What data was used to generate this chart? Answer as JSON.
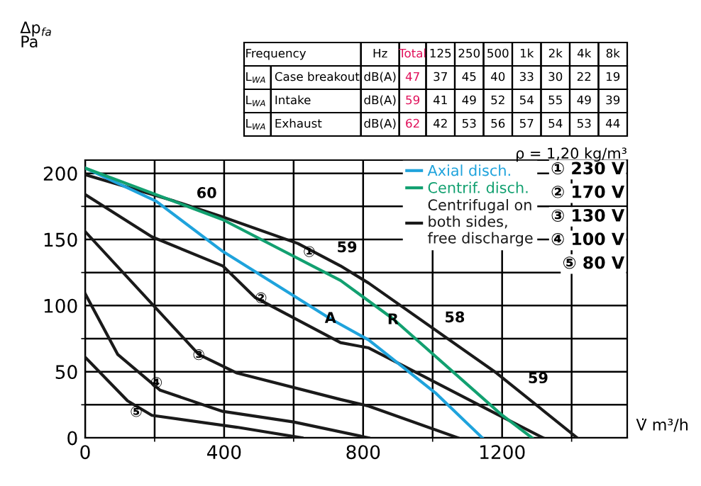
{
  "chart_data": [
    {
      "type": "line",
      "ylabel": "Δp$_{fa}$\nPa",
      "xlabel": "V̇ m³/h",
      "xlim": [
        0,
        1560
      ],
      "ylim": [
        0,
        210
      ],
      "xticks": [
        0,
        400,
        800,
        1200
      ],
      "yticks": [
        0,
        50,
        100,
        150,
        200
      ],
      "grid": true,
      "legend": "top right",
      "marker": "none",
      "line_style": "solid",
      "series": [
        {
          "name": "Centrifugal on\nboth sides,\nfree discharge",
          "color": "#1a1a1a",
          "x": [
            0,
            257,
            396,
            612,
            735,
            816,
            1184,
            1416
          ],
          "values": [
            199,
            179,
            167,
            147,
            130,
            117,
            49,
            0
          ]
        },
        {
          "color": "#1a1a1a",
          "x": [
            0,
            192,
            396,
            490,
            735,
            816,
            1184,
            1318
          ],
          "values": [
            184,
            152,
            130,
            106,
            72,
            68,
            18,
            0
          ]
        },
        {
          "color": "#1a1a1a",
          "x": [
            0,
            204,
            327,
            437,
            735,
            816,
            1073
          ],
          "values": [
            156,
            98,
            63,
            49,
            29,
            24,
            0
          ]
        },
        {
          "color": "#1a1a1a",
          "x": [
            0,
            94,
            216,
            396,
            600,
            816
          ],
          "values": [
            109,
            63,
            36,
            20,
            12,
            0
          ]
        },
        {
          "color": "#1a1a1a",
          "x": [
            0,
            122,
            192,
            437,
            624
          ],
          "values": [
            61,
            28,
            17,
            8,
            0
          ]
        },
        {
          "name": "Axial disch.",
          "color": "#1fa3dc",
          "x": [
            0,
            204,
            396,
            706,
            816,
            1008,
            1143
          ],
          "values": [
            204,
            179,
            141,
            90,
            74,
            34,
            0
          ]
        },
        {
          "name": "Centrif. disch.",
          "color": "#12a070",
          "x": [
            0,
            396,
            735,
            886,
            1196,
            1286
          ],
          "values": [
            204,
            165,
            119,
            90,
            18,
            0
          ]
        }
      ],
      "annotations": [
        {
          "text": "60",
          "x": 286,
          "y": 177
        },
        {
          "text": "59",
          "x": 690,
          "y": 136
        },
        {
          "text": "58",
          "x": 1000,
          "y": 83
        },
        {
          "text": "59",
          "x": 1240,
          "y": 37
        },
        {
          "text": "①",
          "x": 645,
          "y": 140
        },
        {
          "text": "②",
          "x": 506,
          "y": 105
        },
        {
          "text": "③",
          "x": 327,
          "y": 62
        },
        {
          "text": "④",
          "x": 205,
          "y": 41
        },
        {
          "text": "⑤",
          "x": 147,
          "y": 19
        },
        {
          "text": "A",
          "x": 706,
          "y": 90
        },
        {
          "text": "R",
          "x": 886,
          "y": 89
        },
        "① 230 V",
        "② 170 V",
        "③ 130 V",
        "④ 100 V",
        "⑤ 80 V",
        "ρ = 1,20 kg/m³"
      ]
    },
    {
      "type": "other",
      "cell_labels": [
        [
          "Frequency",
          null,
          "Hz",
          "Total",
          "125",
          "250",
          "500",
          "1k",
          "2k",
          "4k",
          "8k"
        ],
        [
          "L$_{WA}$",
          "Case breakout",
          "dB(A)",
          "47",
          "37",
          "45",
          "40",
          "33",
          "30",
          "22",
          "19"
        ],
        [
          "L$_{WA}$",
          "Intake",
          "dB(A)",
          "59",
          "41",
          "49",
          "52",
          "54",
          "55",
          "49",
          "39"
        ],
        [
          "L$_{WA}$",
          "Exhaust",
          "dB(A)",
          "62",
          "42",
          "53",
          "56",
          "57",
          "54",
          "53",
          "44"
        ]
      ],
      "colors": [
        "#000000",
        "#000000",
        "#000000",
        "#e0105a",
        "#000000",
        "#000000",
        "#000000",
        "#000000",
        "#000000",
        "#000000",
        "#000000"
      ]
    }
  ]
}
